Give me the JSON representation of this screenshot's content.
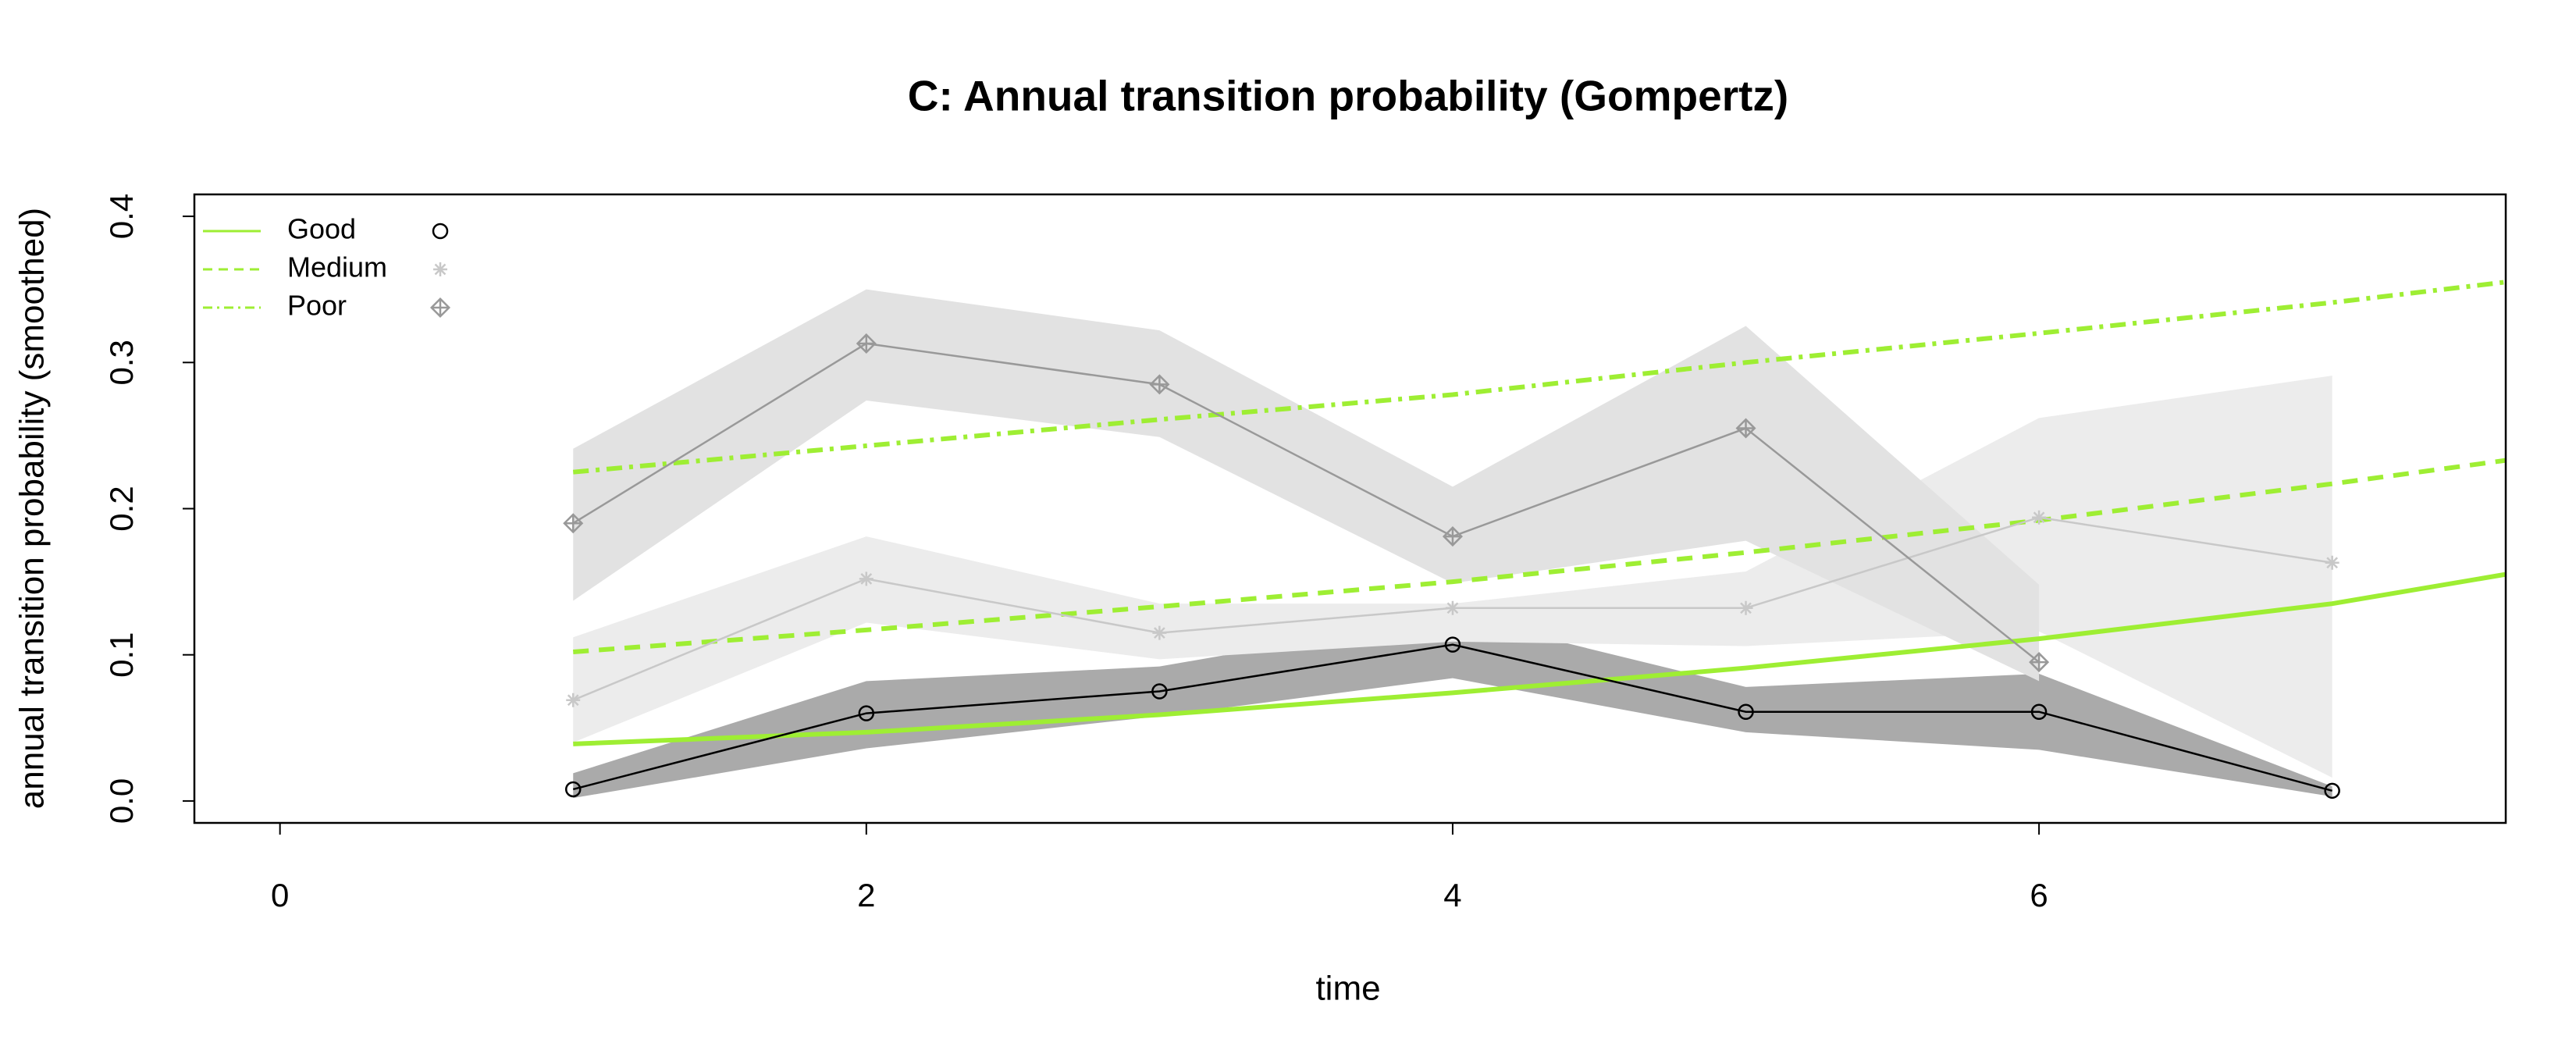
{
  "chart_data": {
    "type": "line",
    "title": "C: Annual transition probability (Gompertz)",
    "x_label": "time",
    "y_label": "annual transition probability (smoothed)",
    "x": [
      1,
      2,
      3,
      4,
      5,
      6,
      7
    ],
    "smooth_x": [
      1,
      2,
      3,
      4,
      5,
      6,
      7,
      7.59
    ],
    "smooth_color": "#9eee33",
    "xlim": [
      -0.292,
      7.592
    ],
    "ylim": [
      -0.015,
      0.415
    ],
    "xticks": [
      0,
      2,
      4,
      6
    ],
    "yticks": [
      {
        "value": 0,
        "label": "0.0"
      },
      0.1,
      0.2,
      0.3,
      0.4
    ],
    "legend_position": "top-left",
    "series": [
      {
        "name": "Good",
        "color": "#000000",
        "band_color": "#aaaaaa",
        "marker": "circle",
        "line_style": "solid",
        "values": [
          0.008,
          0.06,
          0.075,
          0.107,
          0.061,
          0.061,
          0.007
        ],
        "lower": [
          0.002,
          0.036,
          0.058,
          0.084,
          0.047,
          0.035,
          0.003
        ],
        "upper": [
          0.019,
          0.082,
          0.092,
          0.127,
          0.078,
          0.087,
          0.01
        ],
        "smooth_values": [
          0.039,
          0.047,
          0.059,
          0.074,
          0.091,
          0.111,
          0.135,
          0.155
        ]
      },
      {
        "name": "Medium",
        "color": "#c8c8c8",
        "band_color": "#ececec",
        "marker": "asterisk",
        "line_style": "dashed",
        "values": [
          0.069,
          0.152,
          0.115,
          0.132,
          0.132,
          0.194,
          0.163
        ],
        "lower": [
          0.04,
          0.122,
          0.097,
          0.109,
          0.106,
          0.116,
          0.016
        ],
        "upper": [
          0.112,
          0.181,
          0.135,
          0.135,
          0.157,
          0.262,
          0.291
        ],
        "smooth_values": [
          0.102,
          0.117,
          0.133,
          0.15,
          0.17,
          0.192,
          0.217,
          0.233
        ]
      },
      {
        "name": "Poor",
        "color": "#999999",
        "band_color": "#e2e2e2",
        "marker": "diamond-plus",
        "line_style": "dashdot",
        "values": [
          0.19,
          0.313,
          0.285,
          0.181,
          0.255,
          0.095,
          null
        ],
        "lower": [
          0.137,
          0.274,
          0.249,
          0.149,
          0.178,
          0.082,
          null
        ],
        "upper": [
          0.241,
          0.35,
          0.322,
          0.215,
          0.325,
          0.148,
          null
        ],
        "smooth_values": [
          0.225,
          0.243,
          0.261,
          0.278,
          0.3,
          0.32,
          0.341,
          0.355
        ]
      }
    ]
  }
}
